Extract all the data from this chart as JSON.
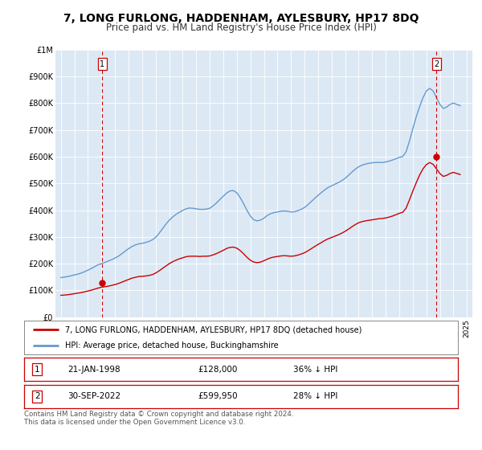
{
  "title": "7, LONG FURLONG, HADDENHAM, AYLESBURY, HP17 8DQ",
  "subtitle": "Price paid vs. HM Land Registry's House Price Index (HPI)",
  "title_fontsize": 10,
  "subtitle_fontsize": 8.5,
  "bg_color": "#ffffff",
  "plot_bg_color": "#dce9f5",
  "grid_color": "#ffffff",
  "xlim": [
    1994.6,
    2025.4
  ],
  "ylim": [
    0,
    1000000
  ],
  "yticks": [
    0,
    100000,
    200000,
    300000,
    400000,
    500000,
    600000,
    700000,
    800000,
    900000,
    1000000
  ],
  "ytick_labels": [
    "£0",
    "£100K",
    "£200K",
    "£300K",
    "£400K",
    "£500K",
    "£600K",
    "£700K",
    "£800K",
    "£900K",
    "£1M"
  ],
  "xticks": [
    1995,
    1996,
    1997,
    1998,
    1999,
    2000,
    2001,
    2002,
    2003,
    2004,
    2005,
    2006,
    2007,
    2008,
    2009,
    2010,
    2011,
    2012,
    2013,
    2014,
    2015,
    2016,
    2017,
    2018,
    2019,
    2020,
    2021,
    2022,
    2023,
    2024,
    2025
  ],
  "red_line_color": "#cc0000",
  "blue_line_color": "#6699cc",
  "marker_color": "#cc0000",
  "vline_color": "#cc0000",
  "point1_x": 1998.054,
  "point1_y": 128000,
  "point2_x": 2022.75,
  "point2_y": 599950,
  "legend_label_red": "7, LONG FURLONG, HADDENHAM, AYLESBURY, HP17 8DQ (detached house)",
  "legend_label_blue": "HPI: Average price, detached house, Buckinghamshire",
  "table_row1": [
    "1",
    "21-JAN-1998",
    "£128,000",
    "36% ↓ HPI"
  ],
  "table_row2": [
    "2",
    "30-SEP-2022",
    "£599,950",
    "28% ↓ HPI"
  ],
  "footnote": "Contains HM Land Registry data © Crown copyright and database right 2024.\nThis data is licensed under the Open Government Licence v3.0.",
  "hpi_x": [
    1995.0,
    1995.25,
    1995.5,
    1995.75,
    1996.0,
    1996.25,
    1996.5,
    1996.75,
    1997.0,
    1997.25,
    1997.5,
    1997.75,
    1998.0,
    1998.25,
    1998.5,
    1998.75,
    1999.0,
    1999.25,
    1999.5,
    1999.75,
    2000.0,
    2000.25,
    2000.5,
    2000.75,
    2001.0,
    2001.25,
    2001.5,
    2001.75,
    2002.0,
    2002.25,
    2002.5,
    2002.75,
    2003.0,
    2003.25,
    2003.5,
    2003.75,
    2004.0,
    2004.25,
    2004.5,
    2004.75,
    2005.0,
    2005.25,
    2005.5,
    2005.75,
    2006.0,
    2006.25,
    2006.5,
    2006.75,
    2007.0,
    2007.25,
    2007.5,
    2007.75,
    2008.0,
    2008.25,
    2008.5,
    2008.75,
    2009.0,
    2009.25,
    2009.5,
    2009.75,
    2010.0,
    2010.25,
    2010.5,
    2010.75,
    2011.0,
    2011.25,
    2011.5,
    2011.75,
    2012.0,
    2012.25,
    2012.5,
    2012.75,
    2013.0,
    2013.25,
    2013.5,
    2013.75,
    2014.0,
    2014.25,
    2014.5,
    2014.75,
    2015.0,
    2015.25,
    2015.5,
    2015.75,
    2016.0,
    2016.25,
    2016.5,
    2016.75,
    2017.0,
    2017.25,
    2017.5,
    2017.75,
    2018.0,
    2018.25,
    2018.5,
    2018.75,
    2019.0,
    2019.25,
    2019.5,
    2019.75,
    2020.0,
    2020.25,
    2020.5,
    2020.75,
    2021.0,
    2021.25,
    2021.5,
    2021.75,
    2022.0,
    2022.25,
    2022.5,
    2022.75,
    2023.0,
    2023.25,
    2023.5,
    2023.75,
    2024.0,
    2024.25,
    2024.5
  ],
  "hpi_y": [
    148000,
    150000,
    152000,
    155000,
    158000,
    161000,
    165000,
    170000,
    176000,
    182000,
    189000,
    196000,
    200000,
    205000,
    210000,
    215000,
    221000,
    228000,
    237000,
    247000,
    256000,
    264000,
    270000,
    274000,
    276000,
    279000,
    283000,
    289000,
    298000,
    313000,
    330000,
    347000,
    362000,
    374000,
    384000,
    392000,
    399000,
    405000,
    408000,
    407000,
    405000,
    403000,
    403000,
    404000,
    407000,
    416000,
    427000,
    440000,
    452000,
    464000,
    472000,
    473000,
    465000,
    447000,
    424000,
    399000,
    378000,
    364000,
    360000,
    363000,
    370000,
    380000,
    387000,
    391000,
    393000,
    396000,
    397000,
    396000,
    393000,
    394000,
    398000,
    403000,
    410000,
    420000,
    432000,
    444000,
    455000,
    466000,
    476000,
    485000,
    491000,
    497000,
    503000,
    510000,
    519000,
    530000,
    542000,
    553000,
    562000,
    568000,
    572000,
    575000,
    577000,
    578000,
    578000,
    578000,
    580000,
    583000,
    587000,
    592000,
    597000,
    600000,
    618000,
    657000,
    704000,
    748000,
    786000,
    820000,
    845000,
    855000,
    845000,
    820000,
    795000,
    780000,
    785000,
    795000,
    800000,
    795000,
    790000
  ],
  "red_x": [
    1995.0,
    1995.25,
    1995.5,
    1995.75,
    1996.0,
    1996.25,
    1996.5,
    1996.75,
    1997.0,
    1997.25,
    1997.5,
    1997.75,
    1998.0,
    1998.25,
    1998.5,
    1998.75,
    1999.0,
    1999.25,
    1999.5,
    1999.75,
    2000.0,
    2000.25,
    2000.5,
    2000.75,
    2001.0,
    2001.25,
    2001.5,
    2001.75,
    2002.0,
    2002.25,
    2002.5,
    2002.75,
    2003.0,
    2003.25,
    2003.5,
    2003.75,
    2004.0,
    2004.25,
    2004.5,
    2004.75,
    2005.0,
    2005.25,
    2005.5,
    2005.75,
    2006.0,
    2006.25,
    2006.5,
    2006.75,
    2007.0,
    2007.25,
    2007.5,
    2007.75,
    2008.0,
    2008.25,
    2008.5,
    2008.75,
    2009.0,
    2009.25,
    2009.5,
    2009.75,
    2010.0,
    2010.25,
    2010.5,
    2010.75,
    2011.0,
    2011.25,
    2011.5,
    2011.75,
    2012.0,
    2012.25,
    2012.5,
    2012.75,
    2013.0,
    2013.25,
    2013.5,
    2013.75,
    2014.0,
    2014.25,
    2014.5,
    2014.75,
    2015.0,
    2015.25,
    2015.5,
    2015.75,
    2016.0,
    2016.25,
    2016.5,
    2016.75,
    2017.0,
    2017.25,
    2017.5,
    2017.75,
    2018.0,
    2018.25,
    2018.5,
    2018.75,
    2019.0,
    2019.25,
    2019.5,
    2019.75,
    2020.0,
    2020.25,
    2020.5,
    2020.75,
    2021.0,
    2021.25,
    2021.5,
    2021.75,
    2022.0,
    2022.25,
    2022.5,
    2022.75,
    2023.0,
    2023.25,
    2023.5,
    2023.75,
    2024.0,
    2024.25,
    2024.5
  ],
  "red_y": [
    82000,
    83000,
    84000,
    86000,
    88000,
    90000,
    92000,
    95000,
    98000,
    101000,
    105000,
    109000,
    112000,
    114000,
    116000,
    119000,
    122000,
    126000,
    131000,
    136000,
    141000,
    146000,
    149000,
    152000,
    153000,
    154000,
    156000,
    159000,
    165000,
    173000,
    182000,
    191000,
    200000,
    207000,
    213000,
    218000,
    222000,
    226000,
    228000,
    228000,
    228000,
    227000,
    228000,
    228000,
    229000,
    233000,
    238000,
    244000,
    250000,
    257000,
    261000,
    262000,
    258000,
    249000,
    237000,
    224000,
    213000,
    206000,
    204000,
    206000,
    211000,
    217000,
    222000,
    225000,
    227000,
    229000,
    230000,
    229000,
    228000,
    229000,
    232000,
    236000,
    241000,
    248000,
    256000,
    264000,
    272000,
    279000,
    287000,
    293000,
    298000,
    303000,
    308000,
    314000,
    321000,
    329000,
    338000,
    346000,
    353000,
    357000,
    360000,
    362000,
    364000,
    366000,
    368000,
    369000,
    371000,
    374000,
    378000,
    383000,
    388000,
    392000,
    407000,
    438000,
    471000,
    502000,
    531000,
    554000,
    570000,
    578000,
    571000,
    554000,
    537000,
    526000,
    530000,
    537000,
    541000,
    537000,
    533000
  ]
}
